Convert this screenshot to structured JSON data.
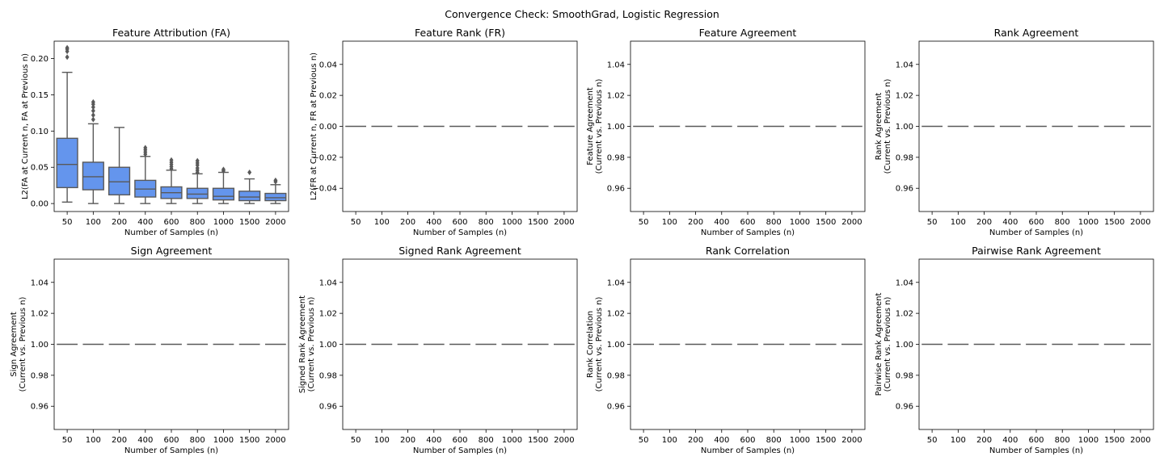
{
  "figure": {
    "suptitle": "Convergence Check: SmoothGrad, Logistic Regression"
  },
  "chart_data": [
    {
      "type": "box",
      "title": "Feature Attribution (FA)",
      "xlabel": "Number of Samples (n)",
      "ylabel": [
        "L2(FA at Current n, FA at Previous n)"
      ],
      "categories": [
        "50",
        "100",
        "200",
        "400",
        "600",
        "800",
        "1000",
        "1500",
        "2000"
      ],
      "ylim": [
        -0.011,
        0.224
      ],
      "yticks": [
        0.0,
        0.05,
        0.1,
        0.15,
        0.2
      ],
      "ytick_labels": [
        "0.00",
        "0.05",
        "0.10",
        "0.15",
        "0.20"
      ],
      "box_color": "#6495ED",
      "boxes": [
        {
          "min": 0.002,
          "q1": 0.022,
          "median": 0.054,
          "q3": 0.09,
          "max": 0.181,
          "outliers": [
            0.202,
            0.21,
            0.213,
            0.215
          ]
        },
        {
          "min": 0.0,
          "q1": 0.019,
          "median": 0.037,
          "q3": 0.057,
          "max": 0.11,
          "outliers": [
            0.116,
            0.122,
            0.128,
            0.133,
            0.137,
            0.14
          ]
        },
        {
          "min": 0.0,
          "q1": 0.012,
          "median": 0.03,
          "q3": 0.05,
          "max": 0.105,
          "outliers": []
        },
        {
          "min": 0.0,
          "q1": 0.009,
          "median": 0.02,
          "q3": 0.032,
          "max": 0.065,
          "outliers": [
            0.068,
            0.071,
            0.074,
            0.077
          ]
        },
        {
          "min": 0.0,
          "q1": 0.007,
          "median": 0.015,
          "q3": 0.023,
          "max": 0.046,
          "outliers": [
            0.048,
            0.051,
            0.054,
            0.057,
            0.06
          ]
        },
        {
          "min": 0.0,
          "q1": 0.007,
          "median": 0.013,
          "q3": 0.021,
          "max": 0.041,
          "outliers": [
            0.043,
            0.046,
            0.049,
            0.053,
            0.056,
            0.059
          ]
        },
        {
          "min": 0.0,
          "q1": 0.005,
          "median": 0.01,
          "q3": 0.021,
          "max": 0.043,
          "outliers": [
            0.045,
            0.047
          ]
        },
        {
          "min": 0.0,
          "q1": 0.004,
          "median": 0.009,
          "q3": 0.017,
          "max": 0.034,
          "outliers": [
            0.043
          ]
        },
        {
          "min": 0.0,
          "q1": 0.004,
          "median": 0.008,
          "q3": 0.014,
          "max": 0.026,
          "outliers": [
            0.03,
            0.032
          ]
        }
      ]
    },
    {
      "type": "box",
      "title": "Feature Rank (FR)",
      "xlabel": "Number of Samples (n)",
      "ylabel": [
        "L2(FR at Current n, FR at Previous n)"
      ],
      "categories": [
        "50",
        "100",
        "200",
        "400",
        "600",
        "800",
        "1000",
        "1500",
        "2000"
      ],
      "ylim": [
        -0.055,
        0.055
      ],
      "yticks": [
        -0.04,
        -0.02,
        0.0,
        0.02,
        0.04
      ],
      "ytick_labels": [
        "−0.04",
        "−0.02",
        "0.00",
        "0.02",
        "0.04"
      ],
      "constant_value": 0.0,
      "values": [
        0,
        0,
        0,
        0,
        0,
        0,
        0,
        0,
        0
      ]
    },
    {
      "type": "box",
      "title": "Feature Agreement",
      "xlabel": "Number of Samples (n)",
      "ylabel": [
        "Feature Agreement",
        "(Current vs. Previous n)"
      ],
      "categories": [
        "50",
        "100",
        "200",
        "400",
        "600",
        "800",
        "1000",
        "1500",
        "2000"
      ],
      "ylim": [
        0.945,
        1.055
      ],
      "yticks": [
        0.96,
        0.98,
        1.0,
        1.02,
        1.04
      ],
      "ytick_labels": [
        "0.96",
        "0.98",
        "1.00",
        "1.02",
        "1.04"
      ],
      "constant_value": 1.0,
      "values": [
        1,
        1,
        1,
        1,
        1,
        1,
        1,
        1,
        1
      ]
    },
    {
      "type": "box",
      "title": "Rank Agreement",
      "xlabel": "Number of Samples (n)",
      "ylabel": [
        "Rank Agreement",
        "(Current vs. Previous n)"
      ],
      "categories": [
        "50",
        "100",
        "200",
        "400",
        "600",
        "800",
        "1000",
        "1500",
        "2000"
      ],
      "ylim": [
        0.945,
        1.055
      ],
      "yticks": [
        0.96,
        0.98,
        1.0,
        1.02,
        1.04
      ],
      "ytick_labels": [
        "0.96",
        "0.98",
        "1.00",
        "1.02",
        "1.04"
      ],
      "constant_value": 1.0,
      "values": [
        1,
        1,
        1,
        1,
        1,
        1,
        1,
        1,
        1
      ]
    },
    {
      "type": "box",
      "title": "Sign Agreement",
      "xlabel": "Number of Samples (n)",
      "ylabel": [
        "Sign Agreement",
        "(Current vs. Previous n)"
      ],
      "categories": [
        "50",
        "100",
        "200",
        "400",
        "600",
        "800",
        "1000",
        "1500",
        "2000"
      ],
      "ylim": [
        0.945,
        1.055
      ],
      "yticks": [
        0.96,
        0.98,
        1.0,
        1.02,
        1.04
      ],
      "ytick_labels": [
        "0.96",
        "0.98",
        "1.00",
        "1.02",
        "1.04"
      ],
      "constant_value": 1.0,
      "values": [
        1,
        1,
        1,
        1,
        1,
        1,
        1,
        1,
        1
      ]
    },
    {
      "type": "box",
      "title": "Signed Rank Agreement",
      "xlabel": "Number of Samples (n)",
      "ylabel": [
        "Signed Rank Agreement",
        "(Current vs. Previous n)"
      ],
      "categories": [
        "50",
        "100",
        "200",
        "400",
        "600",
        "800",
        "1000",
        "1500",
        "2000"
      ],
      "ylim": [
        0.945,
        1.055
      ],
      "yticks": [
        0.96,
        0.98,
        1.0,
        1.02,
        1.04
      ],
      "ytick_labels": [
        "0.96",
        "0.98",
        "1.00",
        "1.02",
        "1.04"
      ],
      "constant_value": 1.0,
      "values": [
        1,
        1,
        1,
        1,
        1,
        1,
        1,
        1,
        1
      ]
    },
    {
      "type": "box",
      "title": "Rank Correlation",
      "xlabel": "Number of Samples (n)",
      "ylabel": [
        "Rank Correlation",
        "(Current vs. Previous n)"
      ],
      "categories": [
        "50",
        "100",
        "200",
        "400",
        "600",
        "800",
        "1000",
        "1500",
        "2000"
      ],
      "ylim": [
        0.945,
        1.055
      ],
      "yticks": [
        0.96,
        0.98,
        1.0,
        1.02,
        1.04
      ],
      "ytick_labels": [
        "0.96",
        "0.98",
        "1.00",
        "1.02",
        "1.04"
      ],
      "constant_value": 1.0,
      "values": [
        1,
        1,
        1,
        1,
        1,
        1,
        1,
        1,
        1
      ]
    },
    {
      "type": "box",
      "title": "Pairwise Rank Agreement",
      "xlabel": "Number of Samples (n)",
      "ylabel": [
        "Pairwise Rank Agreement",
        "(Current vs. Previous n)"
      ],
      "categories": [
        "50",
        "100",
        "200",
        "400",
        "600",
        "800",
        "1000",
        "1500",
        "2000"
      ],
      "ylim": [
        0.945,
        1.055
      ],
      "yticks": [
        0.96,
        0.98,
        1.0,
        1.02,
        1.04
      ],
      "ytick_labels": [
        "0.96",
        "0.98",
        "1.00",
        "1.02",
        "1.04"
      ],
      "constant_value": 1.0,
      "values": [
        1,
        1,
        1,
        1,
        1,
        1,
        1,
        1,
        1
      ]
    }
  ]
}
